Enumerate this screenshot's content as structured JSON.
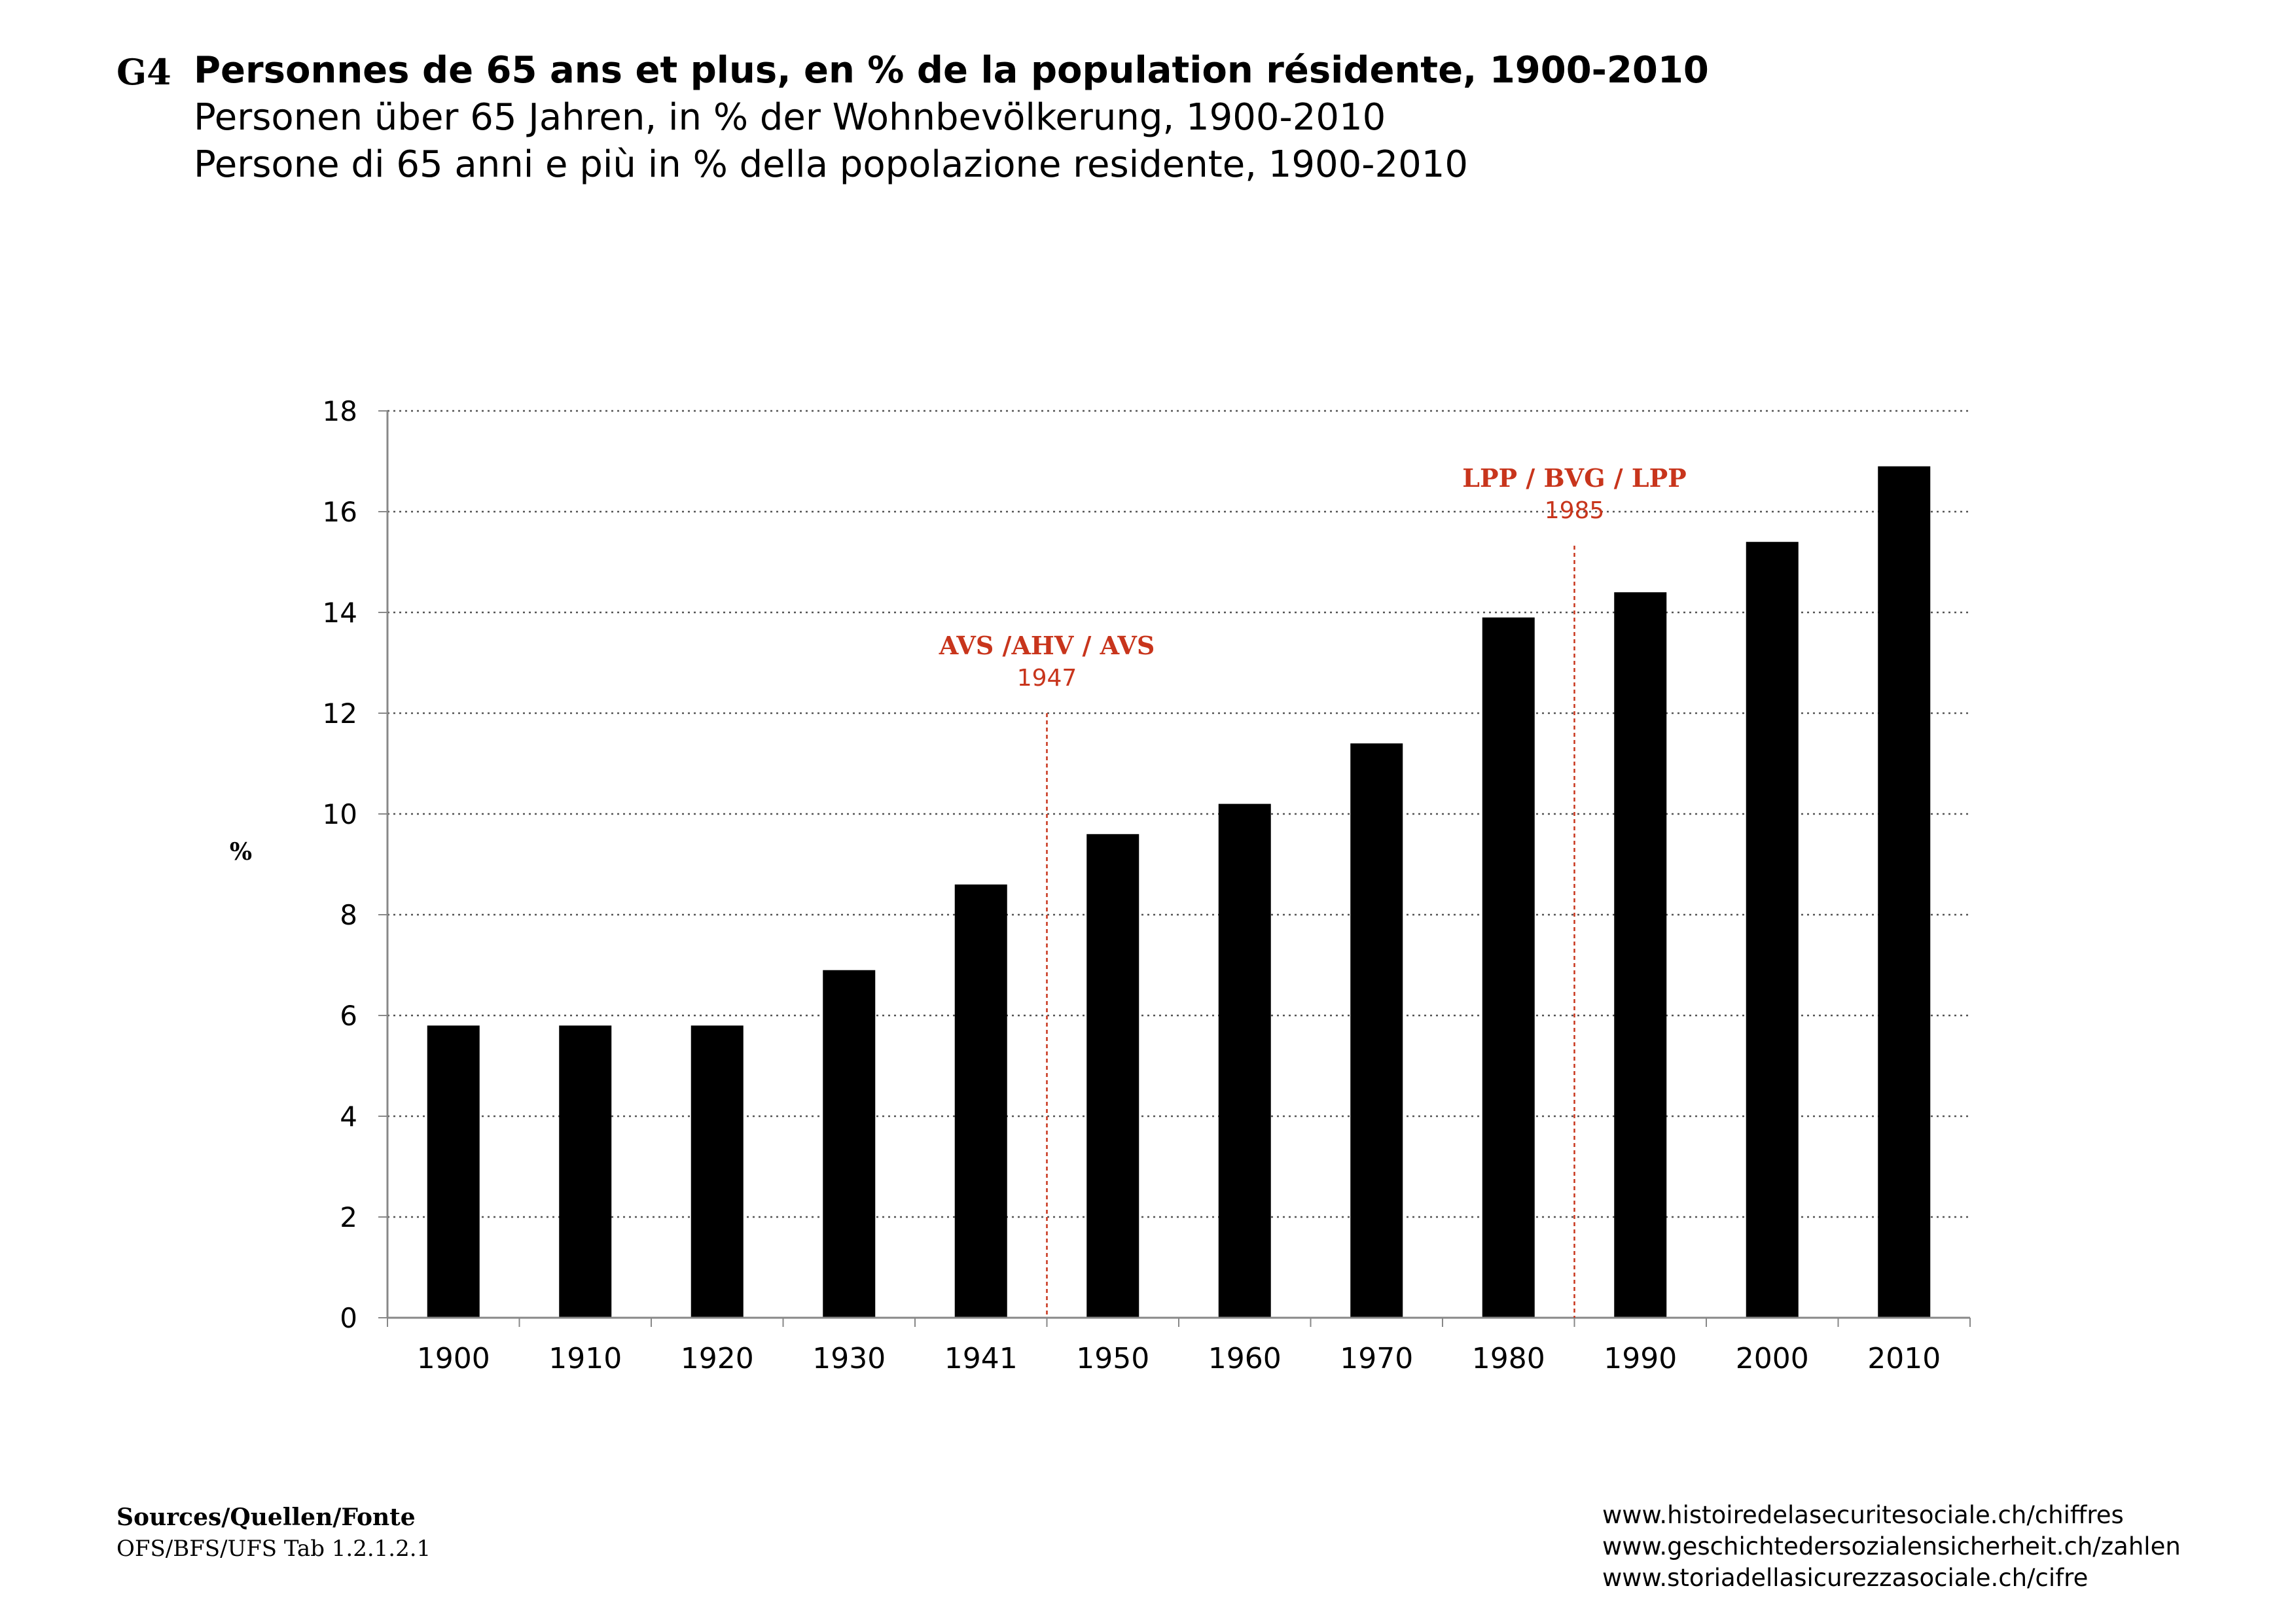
{
  "header": {
    "code": "G4",
    "title_fr": "Personnes de 65 ans et plus, en % de la population résidente, 1900-2010",
    "title_de": "Personen über 65 Jahren, in % der Wohnbevölkerung, 1900-2010",
    "title_it": "Persone di 65 anni e più in % della popolazione residente, 1900-2010"
  },
  "chart_data": {
    "type": "bar",
    "categories": [
      "1900",
      "1910",
      "1920",
      "1930",
      "1941",
      "1950",
      "1960",
      "1970",
      "1980",
      "1990",
      "2000",
      "2010"
    ],
    "values": [
      5.8,
      5.8,
      5.8,
      6.9,
      8.6,
      9.6,
      10.2,
      11.4,
      13.9,
      14.4,
      15.4,
      16.9
    ],
    "ylabel": "%",
    "ylim": [
      0,
      18
    ],
    "yticks": [
      0,
      2,
      4,
      6,
      8,
      10,
      12,
      14,
      16,
      18
    ],
    "grid": "horizontal dotted",
    "bar_color": "#000000",
    "annotations": [
      {
        "label": "AVS /AHV / AVS",
        "year": "1947",
        "after_category_index": 4,
        "color": "#c8351c"
      },
      {
        "label": "LPP / BVG / LPP",
        "year": "1985",
        "after_category_index": 8,
        "color": "#c8351c"
      }
    ]
  },
  "footer": {
    "sources_title": "Sources/Quellen/Fonte",
    "sources_text": "OFS/BFS/UFS Tab 1.2.1.2.1",
    "links": [
      "www.histoiredelasecuritesociale.ch/chiffres",
      "www.geschichtedersozialensicherheit.ch/zahlen",
      "www.storiadellasicurezzasociale.ch/cifre"
    ]
  }
}
